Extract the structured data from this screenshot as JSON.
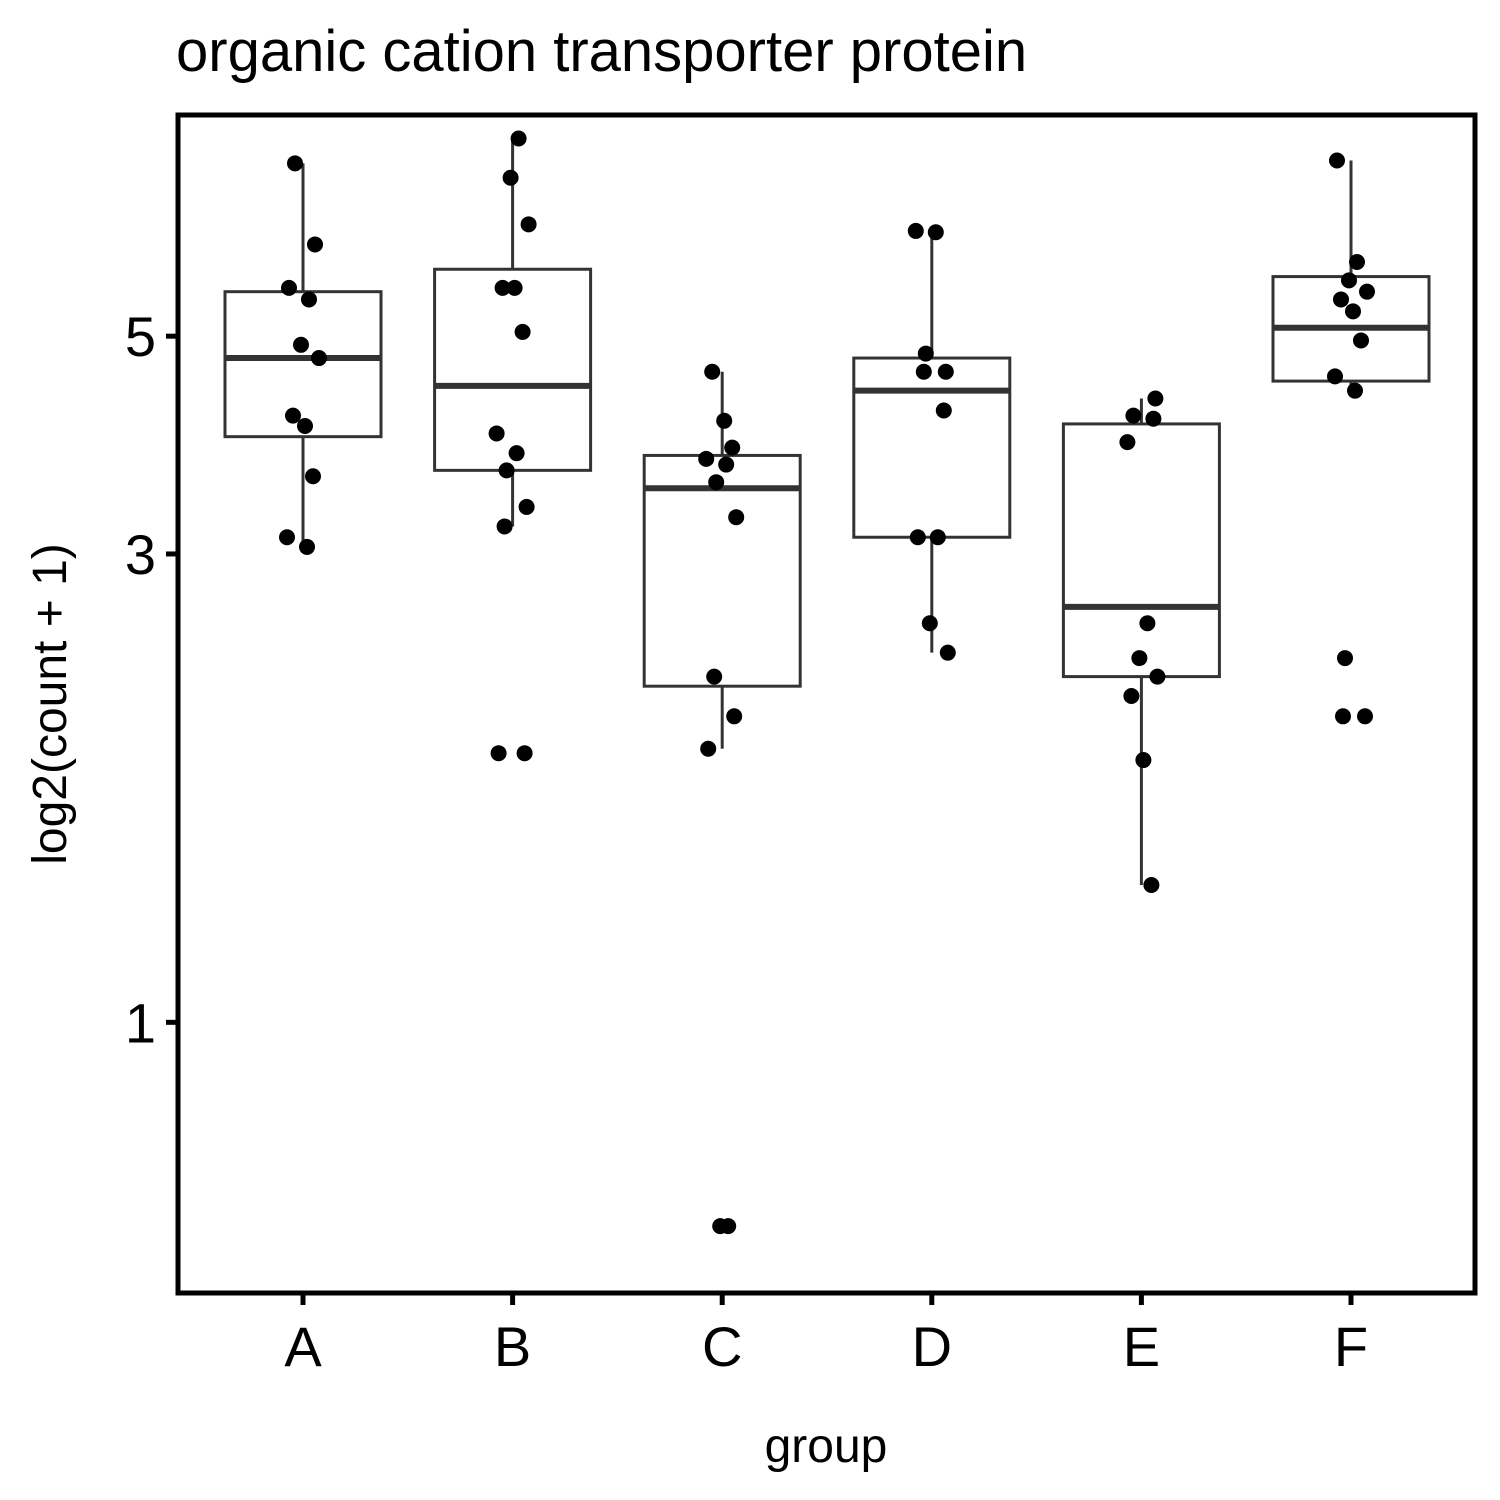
{
  "chart_data": {
    "type": "boxplot",
    "title": "organic cation transporter protein",
    "xlabel": "group",
    "ylabel": "log2(count + 1)",
    "y_scale": "log",
    "ylim": [
      0.53,
      8.4
    ],
    "y_ticks": [
      1,
      3,
      5
    ],
    "y_tick_labels": [
      "1",
      "3",
      "5"
    ],
    "categories": [
      "A",
      "B",
      "C",
      "D",
      "E",
      "F"
    ],
    "boxes": [
      {
        "group": "A",
        "whisker_low": 3.08,
        "q1": 3.95,
        "median": 4.75,
        "q3": 5.55,
        "whisker_high": 7.5
      },
      {
        "group": "B",
        "whisker_low": 3.2,
        "q1": 3.65,
        "median": 4.45,
        "q3": 5.85,
        "whisker_high": 7.95
      },
      {
        "group": "C",
        "whisker_low": 1.9,
        "q1": 2.2,
        "median": 3.5,
        "q3": 3.78,
        "whisker_high": 4.6
      },
      {
        "group": "D",
        "whisker_low": 2.38,
        "q1": 3.12,
        "median": 4.4,
        "q3": 4.75,
        "whisker_high": 6.4
      },
      {
        "group": "E",
        "whisker_low": 1.38,
        "q1": 2.25,
        "median": 2.65,
        "q3": 4.07,
        "whisker_high": 4.32
      },
      {
        "group": "F",
        "whisker_low": 4.37,
        "q1": 4.5,
        "median": 5.1,
        "q3": 5.75,
        "whisker_high": 7.55
      }
    ],
    "points": [
      {
        "group": "A",
        "values": [
          7.5,
          6.2,
          5.6,
          5.45,
          4.9,
          4.75,
          4.15,
          4.05,
          3.6,
          3.12,
          3.05
        ]
      },
      {
        "group": "B",
        "values": [
          7.95,
          7.25,
          6.5,
          5.6,
          5.6,
          5.05,
          3.98,
          3.8,
          3.65,
          3.35,
          3.2,
          1.88,
          1.88
        ]
      },
      {
        "group": "C",
        "values": [
          4.6,
          4.1,
          3.85,
          3.75,
          3.7,
          3.55,
          3.27,
          2.25,
          2.05,
          1.9,
          0.62,
          0.62
        ]
      },
      {
        "group": "D",
        "values": [
          6.4,
          6.38,
          4.8,
          4.6,
          4.6,
          4.2,
          3.12,
          3.12,
          2.55,
          2.38
        ]
      },
      {
        "group": "E",
        "values": [
          4.32,
          4.15,
          4.12,
          3.9,
          2.55,
          2.35,
          2.25,
          2.15,
          1.85,
          1.38
        ]
      },
      {
        "group": "F",
        "values": [
          7.55,
          5.95,
          5.7,
          5.55,
          5.45,
          5.3,
          4.95,
          4.55,
          4.4,
          2.35,
          2.05,
          2.05
        ]
      }
    ]
  }
}
